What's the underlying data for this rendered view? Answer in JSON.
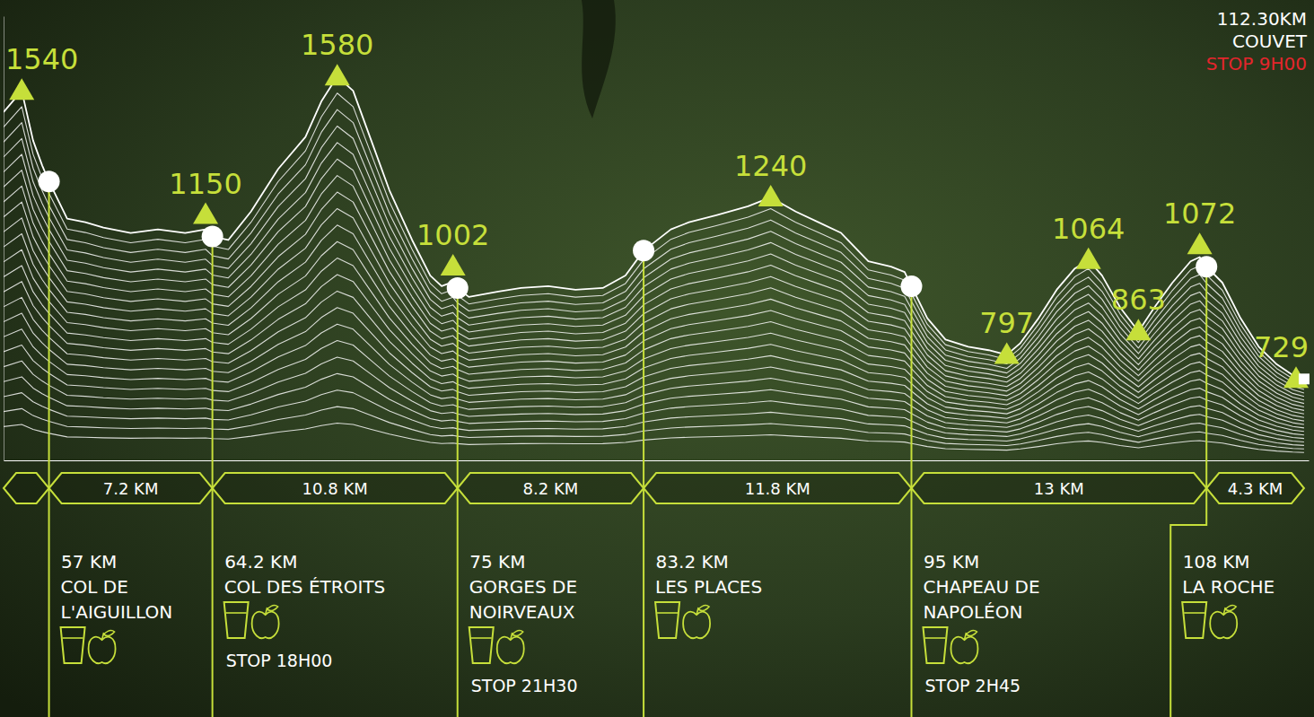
{
  "chart_data": {
    "type": "line",
    "color": "#ffffff",
    "tick_labels": "x",
    "xlim": [
      55,
      112.5
    ],
    "ylim": [
      500,
      1750
    ],
    "xticks": [
      {
        "value": 57,
        "label": "57 KM"
      },
      {
        "value": 64.2,
        "label": "64.2 KM"
      },
      {
        "value": 75,
        "label": "75 KM"
      },
      {
        "value": 83.2,
        "label": "83.2 KM"
      },
      {
        "value": 95,
        "label": "95 KM"
      },
      {
        "value": 108,
        "label": "108 KM"
      }
    ],
    "x": [
      55.0,
      55.8,
      56.3,
      56.7,
      57.0,
      57.8,
      58.6,
      59.4,
      60.6,
      61.8,
      63.0,
      63.9,
      64.2,
      64.9,
      65.9,
      67.1,
      68.3,
      69.0,
      69.7,
      70.4,
      71.2,
      72.0,
      73.0,
      73.8,
      74.3,
      74.8,
      75.0,
      75.5,
      76.8,
      77.8,
      79.0,
      80.2,
      81.4,
      82.4,
      83.2,
      84.4,
      85.2,
      86.4,
      87.8,
      88.8,
      89.9,
      90.9,
      91.9,
      93.1,
      94.1,
      94.7,
      95.0,
      95.7,
      96.5,
      97.5,
      98.4,
      99.2,
      99.8,
      100.6,
      101.4,
      102.2,
      102.8,
      103.4,
      104.2,
      105.0,
      105.7,
      106.5,
      107.3,
      107.7,
      108.0,
      108.7,
      109.5,
      110.3,
      111.1,
      111.8,
      112.3
    ],
    "values": [
      1480,
      1540,
      1400,
      1330,
      1285,
      1180,
      1170,
      1155,
      1140,
      1150,
      1140,
      1150,
      1130,
      1120,
      1200,
      1320,
      1410,
      1510,
      1580,
      1540,
      1400,
      1260,
      1120,
      1020,
      990,
      1002,
      985,
      960,
      975,
      985,
      990,
      980,
      985,
      1020,
      1090,
      1150,
      1170,
      1190,
      1215,
      1240,
      1200,
      1170,
      1140,
      1060,
      1045,
      1030,
      990,
      900,
      840,
      820,
      810,
      797,
      830,
      900,
      980,
      1040,
      1064,
      1020,
      930,
      863,
      930,
      1000,
      1060,
      1072,
      1045,
      1000,
      900,
      820,
      770,
      740,
      729
    ],
    "checkpoints": [
      {
        "elevation": 1285,
        "name": "COL DE L'AIGUILLON",
        "aid": true
      },
      {
        "elevation": 1130,
        "name": "COL DES ÉTROITS",
        "aid": true,
        "stop": "STOP 18H00"
      },
      {
        "elevation": 985,
        "name": "GORGES DE NOIRVEAUX",
        "aid": true,
        "stop": "STOP 21H30"
      },
      {
        "elevation": 1090,
        "name": "LES PLACES",
        "aid": true
      },
      {
        "elevation": 990,
        "name": "CHAPEAU DE NAPOLÉON",
        "aid": true,
        "stop": "STOP 2H45"
      },
      {
        "elevation": 1045,
        "name": "LA ROCHE",
        "aid": true
      }
    ],
    "segments": [
      "7.2 KM",
      "10.8 KM",
      "8.2 KM",
      "11.8 KM",
      "13 KM",
      "4.3 KM"
    ],
    "peaks": [
      {
        "km": 55.8,
        "elevation": 1540
      },
      {
        "km": 63.9,
        "elevation": 1150
      },
      {
        "km": 69.7,
        "elevation": 1580
      },
      {
        "km": 74.8,
        "elevation": 1002
      },
      {
        "km": 88.8,
        "elevation": 1240
      },
      {
        "km": 99.2,
        "elevation": 797
      },
      {
        "km": 102.8,
        "elevation": 1064
      },
      {
        "km": 105.0,
        "elevation": 863
      },
      {
        "km": 107.7,
        "elevation": 1072
      },
      {
        "km": 112.3,
        "elevation": 729
      }
    ],
    "finish": {
      "km": 112.3,
      "elevation": 729,
      "label": "112.30KM",
      "name": "COUVET",
      "stop": "STOP 9H00"
    }
  }
}
